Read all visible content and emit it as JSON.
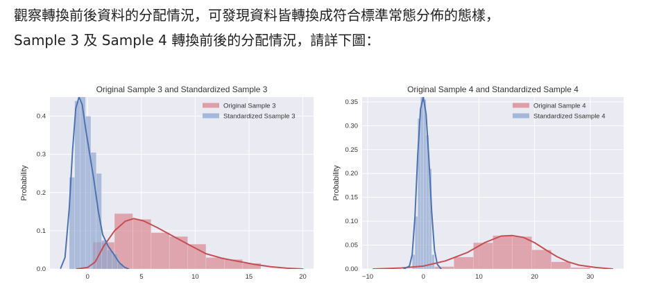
{
  "paragraph": {
    "line1": "觀察轉換前後資料的分配情況，可發現資料皆轉換成符合標準常態分佈的態樣，",
    "line2": "Sample 3 及 Sample 4 轉換前後的分配情況，請詳下圖："
  },
  "colors": {
    "plot_bg": "#e9eaf2",
    "grid": "#ffffff",
    "red_fill": "#d8848d",
    "red_line": "#c44e52",
    "blue_fill": "#8ea5cf",
    "blue_line": "#4c72b0"
  },
  "chart_data": [
    {
      "type": "histogram",
      "title": "Original Sample 3 and Standardized Sample 3",
      "ylabel": "Probability",
      "xlim": [
        -3.5,
        21
      ],
      "ylim": [
        0,
        0.45
      ],
      "xticks": [
        0,
        5,
        10,
        15,
        20
      ],
      "xtick_labels": [
        "0",
        "5",
        "10",
        "15",
        "20"
      ],
      "yticks": [
        0,
        0.1,
        0.2,
        0.3,
        0.4
      ],
      "ytick_labels": [
        "0.0",
        "0.1",
        "0.2",
        "0.3",
        "0.4"
      ],
      "legend_position": "top-right",
      "series": [
        {
          "name": "Original Sample 3",
          "color_key": "red",
          "bins": [
            [
              0.5,
              2.5,
              0.07
            ],
            [
              2.5,
              4.2,
              0.145
            ],
            [
              4.2,
              5.9,
              0.13
            ],
            [
              5.9,
              7.6,
              0.095
            ],
            [
              7.6,
              9.3,
              0.085
            ],
            [
              9.3,
              11.0,
              0.065
            ],
            [
              11.0,
              12.7,
              0.03
            ],
            [
              12.7,
              14.4,
              0.025
            ],
            [
              14.4,
              16.1,
              0.015
            ]
          ],
          "kde": [
            [
              -1.0,
              0.0
            ],
            [
              0.0,
              0.004
            ],
            [
              0.7,
              0.018
            ],
            [
              1.5,
              0.06
            ],
            [
              2.5,
              0.1
            ],
            [
              3.5,
              0.125
            ],
            [
              4.3,
              0.132
            ],
            [
              5.2,
              0.126
            ],
            [
              6.5,
              0.108
            ],
            [
              8.0,
              0.085
            ],
            [
              9.5,
              0.062
            ],
            [
              11.0,
              0.04
            ],
            [
              12.5,
              0.028
            ],
            [
              14.0,
              0.02
            ],
            [
              15.5,
              0.012
            ],
            [
              17.0,
              0.006
            ],
            [
              18.5,
              0.002
            ],
            [
              20.0,
              0.0
            ]
          ]
        },
        {
          "name": "Standardized Ssample 3",
          "color_key": "blue",
          "bins": [
            [
              -1.7,
              -1.2,
              0.24
            ],
            [
              -1.2,
              -0.7,
              0.44
            ],
            [
              -0.7,
              -0.2,
              0.45
            ],
            [
              -0.2,
              0.3,
              0.4
            ],
            [
              0.3,
              0.8,
              0.305
            ],
            [
              0.8,
              1.3,
              0.25
            ],
            [
              1.3,
              1.8,
              0.075
            ],
            [
              1.8,
              2.3,
              0.05
            ],
            [
              2.3,
              2.8,
              0.04
            ],
            [
              2.8,
              3.3,
              0.015
            ]
          ],
          "kde": [
            [
              -2.5,
              0.002
            ],
            [
              -2.1,
              0.03
            ],
            [
              -1.7,
              0.16
            ],
            [
              -1.4,
              0.31
            ],
            [
              -1.1,
              0.42
            ],
            [
              -0.8,
              0.45
            ],
            [
              -0.5,
              0.43
            ],
            [
              -0.2,
              0.37
            ],
            [
              0.2,
              0.3
            ],
            [
              0.6,
              0.23
            ],
            [
              1.0,
              0.15
            ],
            [
              1.4,
              0.09
            ],
            [
              1.9,
              0.06
            ],
            [
              2.4,
              0.04
            ],
            [
              2.9,
              0.018
            ],
            [
              3.4,
              0.005
            ],
            [
              3.8,
              0.0
            ]
          ]
        }
      ]
    },
    {
      "type": "histogram",
      "title": "Original Sample 4 and Standardized Sample 4",
      "ylabel": "Probability",
      "xlim": [
        -11,
        36
      ],
      "ylim": [
        0,
        0.36
      ],
      "xticks": [
        -10,
        0,
        10,
        20,
        30
      ],
      "xtick_labels": [
        "−10",
        "0",
        "10",
        "20",
        "30"
      ],
      "yticks": [
        0,
        0.05,
        0.1,
        0.15,
        0.2,
        0.25,
        0.3,
        0.35
      ],
      "ytick_labels": [
        "0.00",
        "0.05",
        "0.10",
        "0.15",
        "0.20",
        "0.25",
        "0.30",
        "0.35"
      ],
      "legend_position": "top-right",
      "series": [
        {
          "name": "Original Sample 4",
          "color_key": "red",
          "bins": [
            [
              2.0,
              5.5,
              0.005
            ],
            [
              5.5,
              9.0,
              0.025
            ],
            [
              9.0,
              12.5,
              0.055
            ],
            [
              12.5,
              16.0,
              0.07
            ],
            [
              16.0,
              19.5,
              0.068
            ],
            [
              19.5,
              23.0,
              0.04
            ],
            [
              23.0,
              26.5,
              0.015
            ],
            [
              26.5,
              30.0,
              0.003
            ]
          ],
          "kde": [
            [
              -9.0,
              0.0
            ],
            [
              -4.0,
              0.002
            ],
            [
              0.0,
              0.006
            ],
            [
              4.0,
              0.017
            ],
            [
              8.0,
              0.035
            ],
            [
              11.0,
              0.055
            ],
            [
              14.0,
              0.069
            ],
            [
              16.0,
              0.07
            ],
            [
              18.0,
              0.066
            ],
            [
              20.0,
              0.055
            ],
            [
              22.0,
              0.04
            ],
            [
              24.0,
              0.026
            ],
            [
              26.0,
              0.015
            ],
            [
              28.0,
              0.008
            ],
            [
              31.0,
              0.003
            ],
            [
              34.0,
              0.0
            ]
          ]
        },
        {
          "name": "Standardized Ssample 4",
          "color_key": "blue",
          "bins": [
            [
              -2.0,
              -1.5,
              0.03
            ],
            [
              -1.5,
              -1.0,
              0.11
            ],
            [
              -1.0,
              -0.5,
              0.315
            ],
            [
              -0.5,
              0.0,
              0.36
            ],
            [
              0.0,
              0.5,
              0.355
            ],
            [
              0.5,
              1.0,
              0.28
            ],
            [
              1.0,
              1.5,
              0.21
            ],
            [
              1.5,
              2.0,
              0.03
            ]
          ],
          "kde": [
            [
              -3.5,
              0.0
            ],
            [
              -2.5,
              0.006
            ],
            [
              -2.0,
              0.03
            ],
            [
              -1.5,
              0.11
            ],
            [
              -1.0,
              0.24
            ],
            [
              -0.5,
              0.335
            ],
            [
              0.0,
              0.36
            ],
            [
              0.5,
              0.325
            ],
            [
              1.0,
              0.23
            ],
            [
              1.5,
              0.12
            ],
            [
              2.0,
              0.04
            ],
            [
              2.5,
              0.01
            ],
            [
              3.2,
              0.0
            ]
          ]
        }
      ]
    }
  ]
}
